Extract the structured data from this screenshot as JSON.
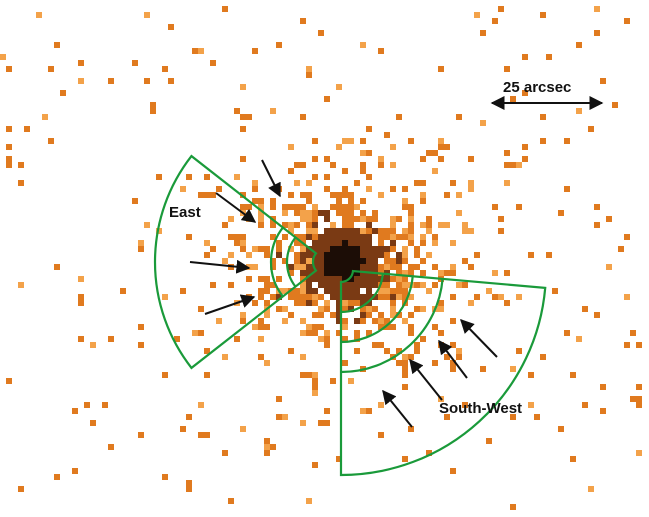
{
  "scale_bar": {
    "label": "25 arcsec"
  },
  "regions": {
    "east": {
      "label": "East"
    },
    "south_west": {
      "label": "South-West"
    }
  },
  "colors": {
    "sector_outline": "#1a9a3a",
    "arrow": "#111111",
    "pixel_dark": "#1c0d06",
    "pixel_mid": "#7a3a14",
    "pixel_orange": "#e07a1f",
    "pixel_light": "#f3a24a",
    "background": "#ffffff"
  }
}
